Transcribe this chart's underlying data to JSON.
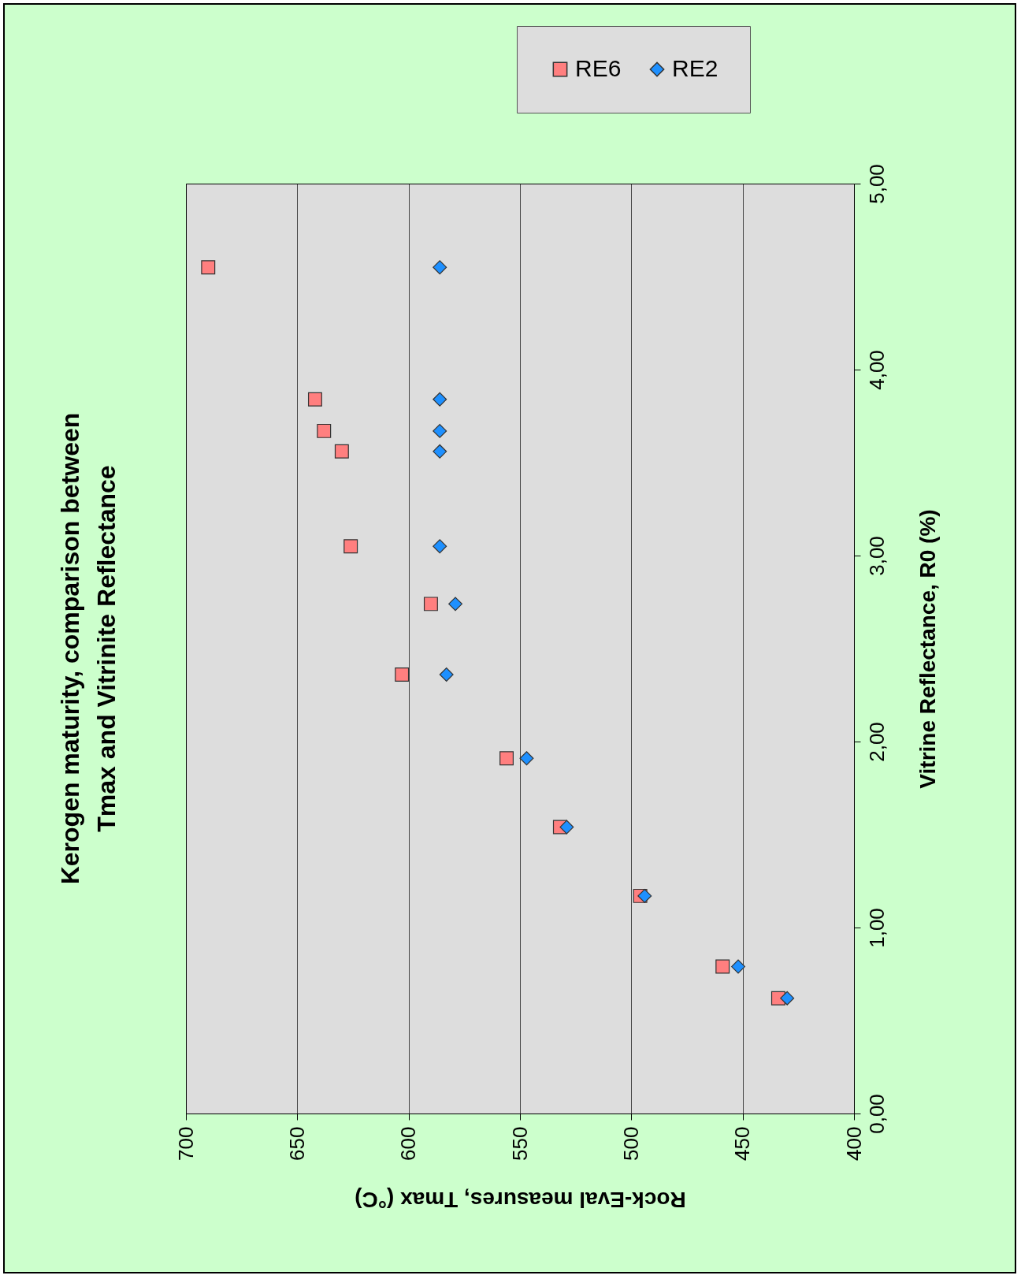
{
  "chart_data": {
    "type": "scatter",
    "title": [
      "Kerogen maturity, comparison between",
      "Tmax and  Vitrinite Reflectance"
    ],
    "xlabel": "Rock-Eval measures, Tmax (°C)",
    "ylabel": "Vitrine Reflectance, R0 (%)",
    "xlim": [
      700,
      400
    ],
    "xticks": [
      700,
      650,
      600,
      550,
      500,
      450,
      400
    ],
    "ylim": [
      0,
      5
    ],
    "yticks": [
      {
        "value": 0,
        "label": "0,00"
      },
      {
        "value": 1,
        "label": "1,00"
      },
      {
        "value": 2,
        "label": "2,00"
      },
      {
        "value": 3,
        "label": "3,00"
      },
      {
        "value": 4,
        "label": "4,00"
      },
      {
        "value": 5,
        "label": "5,00"
      }
    ],
    "grid": "x",
    "legend": "top right",
    "series": [
      {
        "name": "RE6",
        "color": "#ff7f7f",
        "marker": "square",
        "x": [
          434,
          459,
          496,
          532,
          556,
          603,
          590,
          626,
          630,
          638,
          642,
          690
        ],
        "values": [
          0.62,
          0.79,
          1.17,
          1.54,
          1.91,
          2.36,
          2.74,
          3.05,
          3.56,
          3.67,
          3.84,
          4.55
        ]
      },
      {
        "name": "RE2",
        "color": "#1e90ff",
        "marker": "diamond",
        "x": [
          430,
          452,
          494,
          529,
          547,
          583,
          579,
          586,
          586,
          586,
          586,
          586
        ],
        "values": [
          0.62,
          0.79,
          1.17,
          1.54,
          1.91,
          2.36,
          2.74,
          3.05,
          3.56,
          3.67,
          3.84,
          4.55
        ]
      }
    ]
  }
}
